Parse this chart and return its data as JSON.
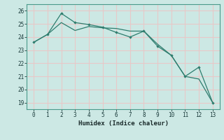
{
  "x": [
    0,
    1,
    2,
    3,
    4,
    5,
    6,
    7,
    8,
    9,
    10,
    11,
    12,
    13
  ],
  "y_line1": [
    23.6,
    24.2,
    25.8,
    25.1,
    24.95,
    24.75,
    24.35,
    24.0,
    24.45,
    23.3,
    22.6,
    21.0,
    21.7,
    19.0
  ],
  "y_line2": [
    23.6,
    24.2,
    25.1,
    24.5,
    24.8,
    24.7,
    24.65,
    24.45,
    24.45,
    23.45,
    22.6,
    21.0,
    20.8,
    19.0
  ],
  "line_color": "#2e7d6e",
  "bg_color": "#cce8e4",
  "grid_color": "#e8c8c8",
  "xlabel": "Humidex (Indice chaleur)",
  "xlim": [
    -0.5,
    13.5
  ],
  "ylim": [
    18.5,
    26.5
  ],
  "yticks": [
    19,
    20,
    21,
    22,
    23,
    24,
    25,
    26
  ],
  "xticks": [
    0,
    1,
    2,
    3,
    4,
    5,
    6,
    7,
    8,
    9,
    10,
    11,
    12,
    13
  ]
}
